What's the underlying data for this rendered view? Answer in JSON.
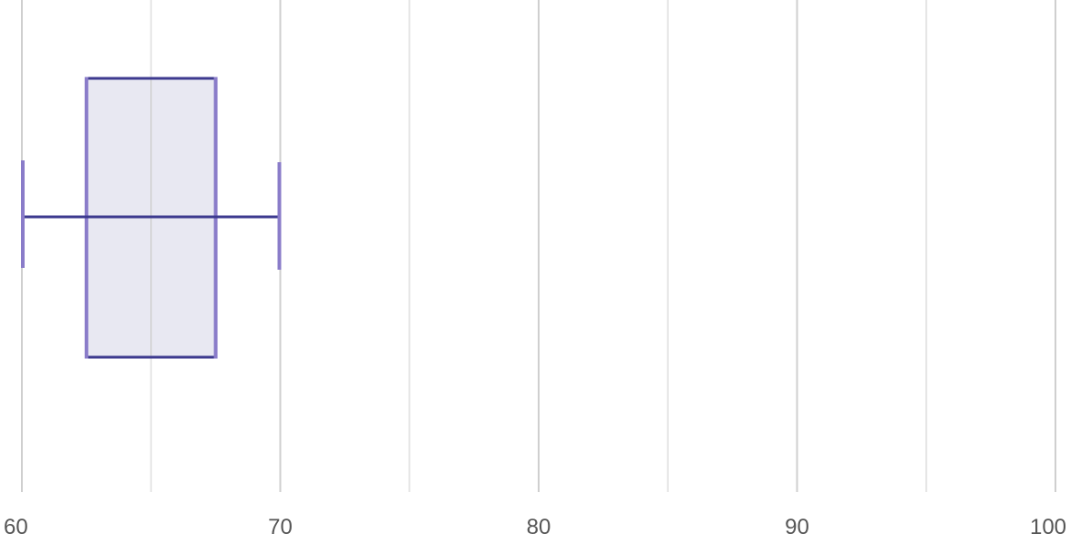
{
  "chart_data": {
    "type": "box",
    "orientation": "horizontal",
    "title": "",
    "xlabel": "",
    "ylabel": "",
    "xlim": [
      60,
      100
    ],
    "x_ticks": [
      60,
      70,
      80,
      90,
      100
    ],
    "x_tick_labels": [
      "60",
      "70",
      "80",
      "90",
      "100"
    ],
    "minor_gridlines_every": 5,
    "grid": true,
    "legend": "none",
    "boxes": [
      {
        "min": 60,
        "q1": 62.5,
        "median": 65,
        "q3": 67.5,
        "max": 70
      }
    ],
    "colors": {
      "box_fill": "#e8e8f2",
      "box_stroke": "#3d3a8f",
      "box_edge_accent": "#8a7cc9",
      "whisker": "#3d3a8f",
      "whisker_cap": "#8a7cc9",
      "grid_major": "#cfcfcf",
      "grid_minor": "#e6e6e6",
      "tick_text": "#555555"
    }
  }
}
